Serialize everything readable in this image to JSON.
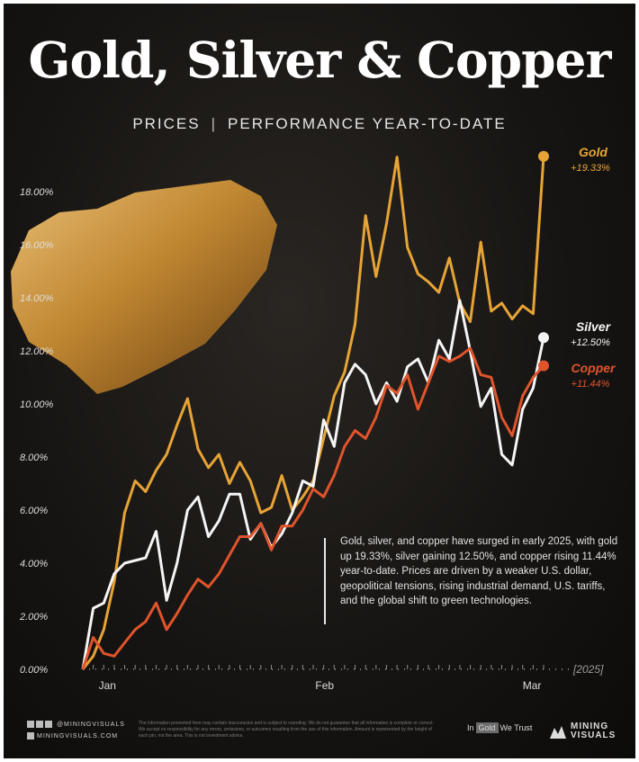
{
  "header": {
    "title": "Gold, Silver & Copper",
    "subtitle_left": "PRICES",
    "subtitle_right": "PERFORMANCE YEAR-TO-DATE"
  },
  "colors": {
    "gold": "#e7a436",
    "silver": "#f5f5f5",
    "copper": "#e0542c"
  },
  "chart_data": {
    "type": "line",
    "title": "Gold, Silver & Copper",
    "subtitle": "PRICES | PERFORMANCE YEAR-TO-DATE",
    "year_label": "[2025]",
    "ylim": [
      0,
      20
    ],
    "y_ticks": [
      "0.00%",
      "2.00%",
      "4.00%",
      "6.00%",
      "8.00%",
      "10.00%",
      "12.00%",
      "14.00%",
      "16.00%",
      "18.00%"
    ],
    "x_ticks": [
      "Jan",
      "Feb",
      "Mar"
    ],
    "grid": false,
    "series": [
      {
        "name": "Gold",
        "end_label": "+19.33%",
        "values": [
          0,
          0.5,
          1.5,
          3.3,
          5.9,
          7.1,
          6.7,
          7.5,
          8.1,
          9.2,
          10.2,
          8.3,
          7.6,
          8.1,
          7.0,
          7.8,
          7.1,
          5.9,
          6.1,
          7.3,
          6.0,
          6.5,
          7.1,
          8.7,
          10.3,
          11.2,
          13.0,
          17.1,
          14.8,
          16.8,
          19.3,
          15.9,
          14.9,
          14.6,
          14.2,
          15.5,
          13.8,
          13.1,
          16.1,
          13.5,
          13.8,
          13.2,
          13.7,
          13.4,
          19.33
        ]
      },
      {
        "name": "Silver",
        "end_label": "+12.50%",
        "values": [
          0,
          2.3,
          2.5,
          3.6,
          4.0,
          4.1,
          4.2,
          5.2,
          2.6,
          4.0,
          6.0,
          6.5,
          5.0,
          5.6,
          6.6,
          6.6,
          4.9,
          5.5,
          4.6,
          5.1,
          5.9,
          7.1,
          6.9,
          9.4,
          8.4,
          10.8,
          11.5,
          11.1,
          10.0,
          10.8,
          10.1,
          11.4,
          11.7,
          10.8,
          12.4,
          11.7,
          13.9,
          12.0,
          9.9,
          10.6,
          8.1,
          7.7,
          9.8,
          10.6,
          12.5
        ]
      },
      {
        "name": "Copper",
        "end_label": "+11.44%",
        "values": [
          0,
          1.2,
          0.6,
          0.5,
          1.0,
          1.5,
          1.8,
          2.5,
          1.5,
          2.1,
          2.8,
          3.4,
          3.1,
          3.6,
          4.3,
          5.0,
          5.0,
          5.5,
          4.5,
          5.4,
          5.4,
          6.0,
          6.8,
          6.5,
          7.3,
          8.4,
          9.0,
          8.7,
          9.5,
          10.7,
          10.4,
          11.1,
          9.8,
          10.8,
          11.8,
          11.6,
          11.8,
          12.1,
          11.1,
          11.0,
          9.5,
          8.8,
          10.3,
          11.0,
          11.44
        ]
      }
    ]
  },
  "annotation": "Gold, silver, and copper have surged in early 2025, with gold up 19.33%, silver gaining 12.50%, and copper rising 11.44% year-to-date. Prices are driven by a weaker U.S. dollar, geopolitical tensions, rising industrial demand, U.S. tariffs, and the global shift to green technologies.",
  "footer": {
    "social_handle": "@MININGVISUALS",
    "site": "MININGVISUALS.COM",
    "disclaimer": "The information presented here may contain inaccuracies and is subject to rounding. We do not guarantee that all information is complete or correct. We accept no responsibility for any errors, omissions, or outcomes resulting from the use of this information. Amount is represented by the height of each pin, not the area. This is not investment advice.",
    "trust_in": "In",
    "trust_gold": "Gold",
    "trust_rest": "We Trust",
    "brand_line1": "MINING",
    "brand_line2": "VISUALS"
  }
}
